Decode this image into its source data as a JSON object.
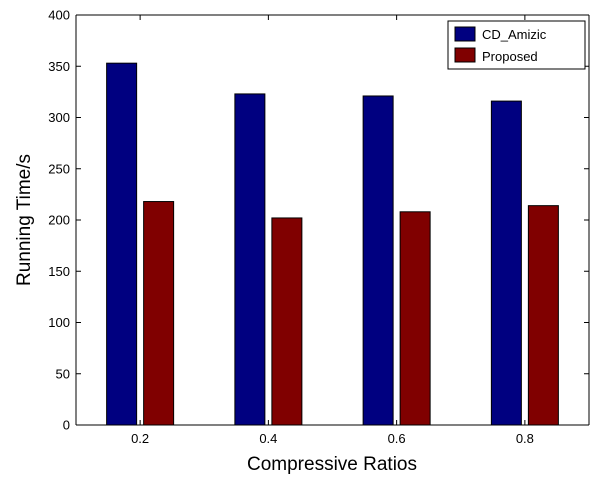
{
  "chart_data": {
    "type": "bar",
    "title": "",
    "xlabel": "Compressive Ratios",
    "ylabel": "Running Time/s",
    "categories": [
      "0.2",
      "0.4",
      "0.6",
      "0.8"
    ],
    "series": [
      {
        "name": "CD_Amizic",
        "values": [
          353,
          323,
          321,
          316
        ],
        "color": "#000080"
      },
      {
        "name": "Proposed",
        "values": [
          218,
          202,
          208,
          214
        ],
        "color": "#800000"
      }
    ],
    "ylim": [
      0,
      400
    ],
    "yticks": [
      "0",
      "50",
      "100",
      "150",
      "200",
      "250",
      "300",
      "350",
      "400"
    ],
    "grid": false,
    "legend_position": "top-right"
  }
}
